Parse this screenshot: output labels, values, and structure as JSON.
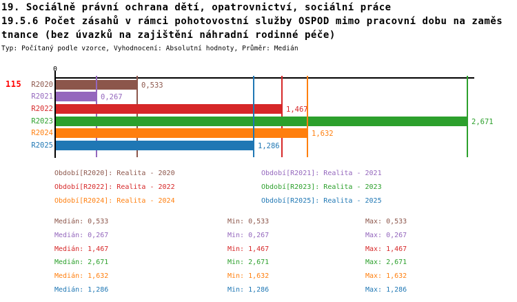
{
  "header": {
    "line1": "19. Sociálně právní ochrana dětí, opatrovnictví, sociální práce",
    "line2": "19.5.6 Počet zásahů v rámci pohotovostní služby OSPOD mimo pracovní dobu na zaměs",
    "line3": "tnance (bez úvazků na zajištění náhradní rodinné péče)",
    "meta": "Typ: Počítaný podle vzorce, Vyhodnocení: Absolutní hodnoty, Průměr: Medián"
  },
  "row_id": "115",
  "chart_data": {
    "type": "bar",
    "orientation": "horizontal",
    "zero_tick": "0",
    "xlim": [
      0,
      2.671
    ],
    "grid": "median-lines-per-series",
    "legend_position": "below",
    "axis_color": "#000000",
    "series": [
      {
        "code": "R2020",
        "legend": "Období[R2020]: Realita - 2020",
        "value": 0.533,
        "value_label": "0,533",
        "color": "#8c564b"
      },
      {
        "code": "R2021",
        "legend": "Období[R2021]: Realita - 2021",
        "value": 0.267,
        "value_label": "0,267",
        "color": "#9467bd"
      },
      {
        "code": "R2022",
        "legend": "Období[R2022]: Realita - 2022",
        "value": 1.467,
        "value_label": "1,467",
        "color": "#d62728"
      },
      {
        "code": "R2023",
        "legend": "Období[R2023]: Realita - 2023",
        "value": 2.671,
        "value_label": "2,671",
        "color": "#2ca02c"
      },
      {
        "code": "R2024",
        "legend": "Období[R2024]: Realita - 2024",
        "value": 1.632,
        "value_label": "1,632",
        "color": "#ff7f0e"
      },
      {
        "code": "R2025",
        "legend": "Období[R2025]: Realita - 2025",
        "value": 1.286,
        "value_label": "1,286",
        "color": "#1f77b4"
      }
    ],
    "stats": {
      "median_label": "Medián",
      "min_label": "Min",
      "max_label": "Max",
      "rows": [
        {
          "median": "0,533",
          "min": "0,533",
          "max": "0,533",
          "color": "#8c564b"
        },
        {
          "median": "0,267",
          "min": "0,267",
          "max": "0,267",
          "color": "#9467bd"
        },
        {
          "median": "1,467",
          "min": "1,467",
          "max": "1,467",
          "color": "#d62728"
        },
        {
          "median": "2,671",
          "min": "2,671",
          "max": "2,671",
          "color": "#2ca02c"
        },
        {
          "median": "1,632",
          "min": "1,632",
          "max": "1,632",
          "color": "#ff7f0e"
        },
        {
          "median": "1,286",
          "min": "1,286",
          "max": "1,286",
          "color": "#1f77b4"
        }
      ]
    }
  }
}
